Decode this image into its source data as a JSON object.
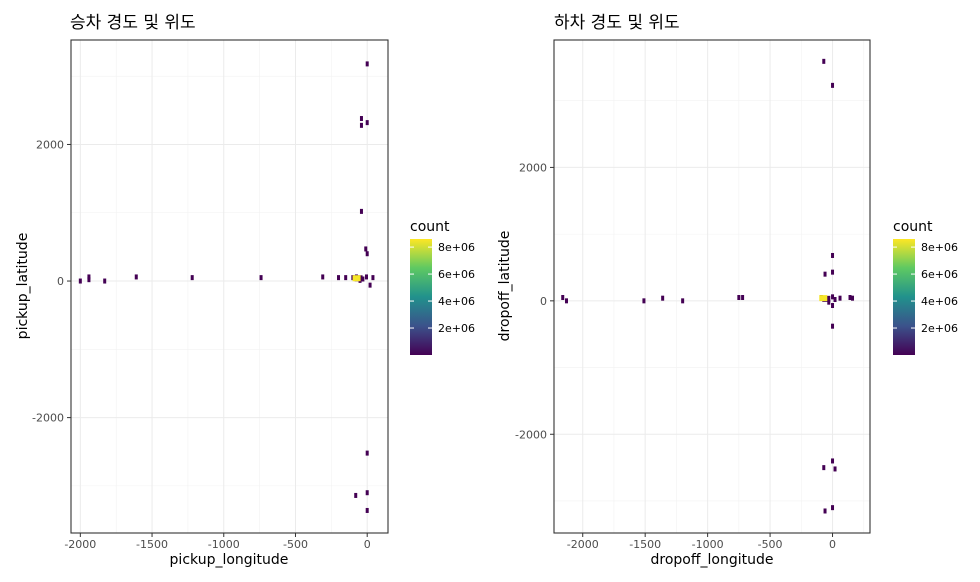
{
  "chart_data": [
    {
      "type": "heatmap",
      "title": "승차 경도 및 위도",
      "xlabel": "pickup_longitude",
      "ylabel": "pickup_latitude",
      "xlim": [
        -2065,
        145
      ],
      "ylim": [
        -3690,
        3530
      ],
      "xticks": [
        -2000,
        -1500,
        -1000,
        -500,
        0
      ],
      "xtick_labels": [
        "-2000",
        "-1500",
        "-1000",
        "-500",
        "0"
      ],
      "yticks": [
        -2000,
        0,
        2000
      ],
      "ytick_labels": [
        "-2000",
        "0",
        "2000"
      ],
      "grid": true,
      "fill_colors": [
        "#440154",
        "#3b528b",
        "#21918c",
        "#5ec962",
        "#fde725"
      ],
      "legend": {
        "title": "count",
        "position": "right",
        "ticks": [
          2000000,
          4000000,
          6000000,
          8000000
        ],
        "labels": [
          "2e+06",
          "4e+06",
          "6e+06",
          "8e+06"
        ],
        "range": [
          0,
          8600000
        ]
      },
      "points": [
        {
          "x": -2000,
          "y": 0,
          "count": 1
        },
        {
          "x": -1940,
          "y": 20,
          "count": 1
        },
        {
          "x": -1940,
          "y": 60,
          "count": 1
        },
        {
          "x": -1830,
          "y": 0,
          "count": 1
        },
        {
          "x": -1610,
          "y": 60,
          "count": 1
        },
        {
          "x": -1220,
          "y": 50,
          "count": 1
        },
        {
          "x": -740,
          "y": 50,
          "count": 1
        },
        {
          "x": -310,
          "y": 60,
          "count": 1
        },
        {
          "x": -200,
          "y": 50,
          "count": 1
        },
        {
          "x": -150,
          "y": 50,
          "count": 1
        },
        {
          "x": -100,
          "y": 50,
          "count": 1
        },
        {
          "x": -75,
          "y": 60,
          "count": 1
        },
        {
          "x": -50,
          "y": 10,
          "count": 1
        },
        {
          "x": -30,
          "y": 30,
          "count": 1
        },
        {
          "x": -74,
          "y": 41,
          "count": 8500000
        },
        {
          "x": -60,
          "y": 40,
          "count": 5000
        },
        {
          "x": -5,
          "y": 60,
          "count": 1
        },
        {
          "x": 40,
          "y": 50,
          "count": 1
        },
        {
          "x": 20,
          "y": -60,
          "count": 1
        },
        {
          "x": -10,
          "y": 470,
          "count": 1
        },
        {
          "x": 0,
          "y": 400,
          "count": 1
        },
        {
          "x": -40,
          "y": 1020,
          "count": 1
        },
        {
          "x": -40,
          "y": 2380,
          "count": 1
        },
        {
          "x": -40,
          "y": 2280,
          "count": 1
        },
        {
          "x": 0,
          "y": 2320,
          "count": 1
        },
        {
          "x": 0,
          "y": 3180,
          "count": 1
        },
        {
          "x": 0,
          "y": -2520,
          "count": 1
        },
        {
          "x": -80,
          "y": -3140,
          "count": 1
        },
        {
          "x": 0,
          "y": -3100,
          "count": 1
        },
        {
          "x": 0,
          "y": -3360,
          "count": 1
        }
      ]
    },
    {
      "type": "heatmap",
      "title": "하차 경도 및 위도",
      "xlabel": "dropoff_longitude",
      "ylabel": "dropoff_latitude",
      "xlim": [
        -2230,
        300
      ],
      "ylim": [
        -3480,
        3910
      ],
      "xticks": [
        -2000,
        -1500,
        -1000,
        -500,
        0
      ],
      "xtick_labels": [
        "-2000",
        "-1500",
        "-1000",
        "-500",
        "0"
      ],
      "yticks": [
        -2000,
        0,
        2000
      ],
      "ytick_labels": [
        "-2000",
        "0",
        "2000"
      ],
      "grid": true,
      "fill_colors": [
        "#440154",
        "#3b528b",
        "#21918c",
        "#5ec962",
        "#fde725"
      ],
      "legend": {
        "title": "count",
        "position": "right",
        "ticks": [
          2000000,
          4000000,
          6000000,
          8000000
        ],
        "labels": [
          "2e+06",
          "4e+06",
          "6e+06",
          "8e+06"
        ],
        "range": [
          0,
          8600000
        ]
      },
      "points": [
        {
          "x": -2160,
          "y": 50,
          "count": 1
        },
        {
          "x": -2130,
          "y": 0,
          "count": 1
        },
        {
          "x": -1510,
          "y": 0,
          "count": 1
        },
        {
          "x": -1360,
          "y": 40,
          "count": 1
        },
        {
          "x": -1200,
          "y": 0,
          "count": 1
        },
        {
          "x": -750,
          "y": 50,
          "count": 1
        },
        {
          "x": -720,
          "y": 50,
          "count": 1
        },
        {
          "x": -90,
          "y": 50,
          "count": 1
        },
        {
          "x": -74,
          "y": 41,
          "count": 8500000
        },
        {
          "x": -50,
          "y": 30,
          "count": 5000
        },
        {
          "x": -30,
          "y": -20,
          "count": 1
        },
        {
          "x": 0,
          "y": 60,
          "count": 1
        },
        {
          "x": 20,
          "y": 20,
          "count": 1
        },
        {
          "x": 60,
          "y": 40,
          "count": 1
        },
        {
          "x": 140,
          "y": 50,
          "count": 1
        },
        {
          "x": 160,
          "y": 40,
          "count": 1
        },
        {
          "x": -60,
          "y": 400,
          "count": 1
        },
        {
          "x": 0,
          "y": 430,
          "count": 1
        },
        {
          "x": 0,
          "y": 680,
          "count": 1
        },
        {
          "x": 0,
          "y": -380,
          "count": 1
        },
        {
          "x": 0,
          "y": -70,
          "count": 1
        },
        {
          "x": -70,
          "y": 3590,
          "count": 1
        },
        {
          "x": 0,
          "y": 3230,
          "count": 1
        },
        {
          "x": -70,
          "y": -2500,
          "count": 1
        },
        {
          "x": 0,
          "y": -2400,
          "count": 1
        },
        {
          "x": 20,
          "y": -2520,
          "count": 1
        },
        {
          "x": -60,
          "y": -3150,
          "count": 1
        },
        {
          "x": 0,
          "y": -3100,
          "count": 1
        }
      ]
    }
  ]
}
